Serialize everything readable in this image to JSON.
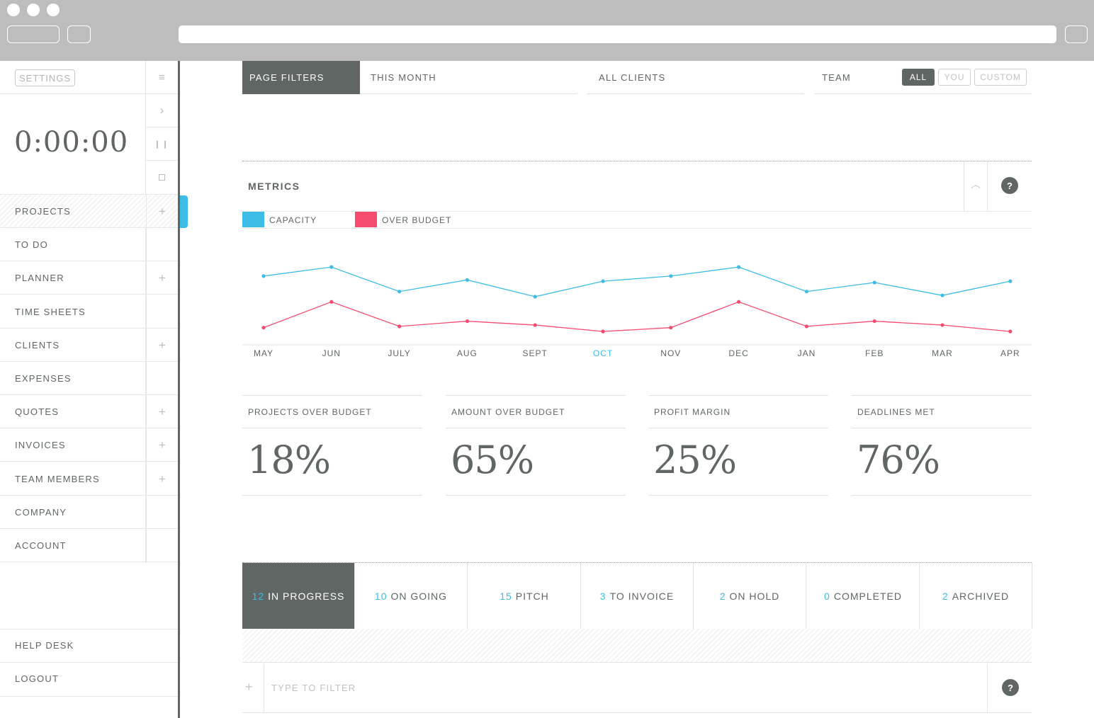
{
  "sidebar": {
    "settings": "SETTINGS",
    "timer": "0:00:00",
    "items": [
      {
        "label": "PROJECTS",
        "add": true
      },
      {
        "label": "TO DO",
        "add": false
      },
      {
        "label": "PLANNER",
        "add": true
      },
      {
        "label": "TIME SHEETS",
        "add": false
      },
      {
        "label": "CLIENTS",
        "add": true
      },
      {
        "label": "EXPENSES",
        "add": false
      },
      {
        "label": "QUOTES",
        "add": true
      },
      {
        "label": "INVOICES",
        "add": true
      },
      {
        "label": "TEAM MEMBERS",
        "add": true
      },
      {
        "label": "COMPANY",
        "add": false
      },
      {
        "label": "ACCOUNT",
        "add": false
      }
    ],
    "help": "HELP DESK",
    "logout": "LOGOUT"
  },
  "filters": {
    "page_filters": "PAGE FILTERS",
    "period": "THIS MONTH",
    "clients": "ALL CLIENTS",
    "team": "TEAM",
    "chips": [
      "ALL",
      "YOU",
      "CUSTOM"
    ]
  },
  "metrics": {
    "title": "METRICS",
    "help": "?",
    "legend": [
      {
        "label": "CAPACITY",
        "color": "#3dbce7"
      },
      {
        "label": "OVER BUDGET",
        "color": "#f54b6e"
      }
    ]
  },
  "chart_data": {
    "type": "line",
    "categories": [
      "MAY",
      "JUN",
      "JULY",
      "AUG",
      "SEPT",
      "OCT",
      "NOV",
      "DEC",
      "JAN",
      "FEB",
      "MAR",
      "APR"
    ],
    "highlight_category": "OCT",
    "series": [
      {
        "name": "CAPACITY",
        "color": "#3dbce7",
        "values": [
          66,
          73,
          54,
          63,
          50,
          62,
          66,
          73,
          54,
          61,
          51,
          62
        ]
      },
      {
        "name": "OVER BUDGET",
        "color": "#f54b6e",
        "values": [
          26,
          46,
          27,
          31,
          28,
          23,
          26,
          46,
          27,
          31,
          28,
          23
        ]
      }
    ],
    "ylim": [
      0,
      100
    ],
    "grid": false
  },
  "stats": [
    {
      "label": "PROJECTS OVER BUDGET",
      "value": "18%"
    },
    {
      "label": "AMOUNT OVER BUDGET",
      "value": "65%"
    },
    {
      "label": "PROFIT MARGIN",
      "value": "25%"
    },
    {
      "label": "DEADLINES MET",
      "value": "76%"
    }
  ],
  "status_tabs": [
    {
      "count": "12",
      "label": "IN PROGRESS"
    },
    {
      "count": "10",
      "label": "ON GOING"
    },
    {
      "count": "15",
      "label": "PITCH"
    },
    {
      "count": "3",
      "label": "TO INVOICE"
    },
    {
      "count": "2",
      "label": "ON HOLD"
    },
    {
      "count": "0",
      "label": "COMPLETED"
    },
    {
      "count": "2",
      "label": "ARCHIVED"
    }
  ],
  "filter_input": {
    "placeholder": "TYPE TO FILTER",
    "add": "+",
    "help": "?"
  }
}
